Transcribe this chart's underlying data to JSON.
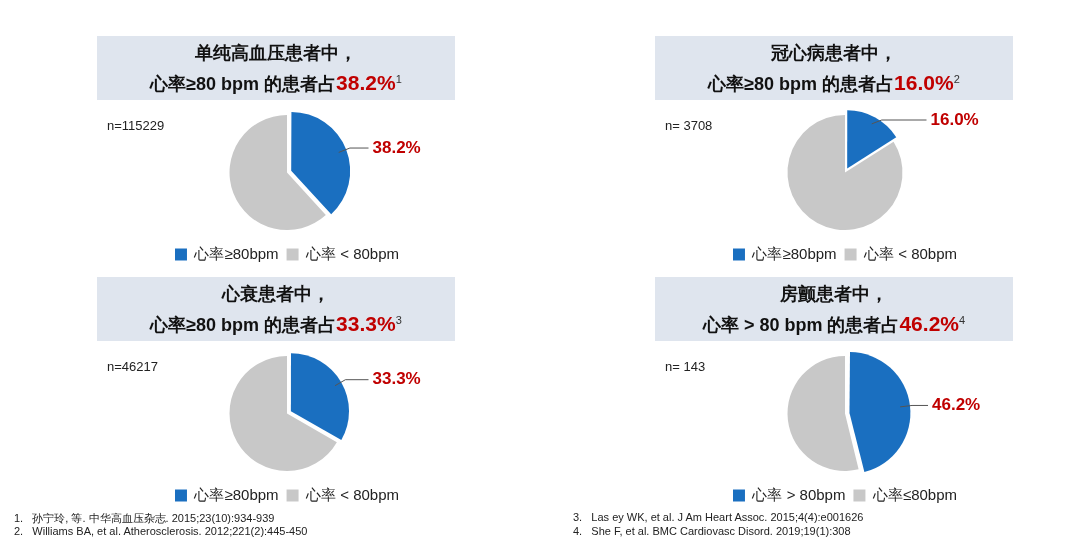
{
  "chart_data": [
    {
      "type": "pie",
      "title": "单纯高血压患者中，",
      "subtitle": "心率≥80 bpm 的患者占38.2%$^{1}$",
      "categories": [
        "心率≥80bpm",
        "心率 < 80bpm"
      ],
      "values": [
        38.2,
        61.8
      ],
      "colors": [
        "#1a6fc0",
        "#c8c8c8"
      ],
      "value_labels": [
        "38.2%",
        null
      ],
      "legend": "bottom",
      "annotations": [
        "n=115229",
        "1.   孙宁玲, 等. 中华高血压杂志. 2015;23(10):934-939"
      ]
    },
    {
      "type": "pie",
      "title": "冠心病患者中，",
      "subtitle": "心率≥80 bpm 的患者占16.0%$^{2}$",
      "categories": [
        "心率≥80bpm",
        "心率 < 80bpm"
      ],
      "values": [
        16.0,
        84.0
      ],
      "colors": [
        "#1a6fc0",
        "#c8c8c8"
      ],
      "value_labels": [
        "16.0%",
        null
      ],
      "legend": "bottom",
      "annotations": [
        "n= 3708",
        "2.   Williams BA, et al. Atherosclerosis. 2012;221(2):445-450"
      ]
    },
    {
      "type": "pie",
      "title": "心衰患者中，",
      "subtitle": "心率≥80 bpm 的患者占33.3%$^{3}$",
      "categories": [
        "心率≥80bpm",
        "心率 < 80bpm"
      ],
      "values": [
        33.3,
        66.7
      ],
      "colors": [
        "#1a6fc0",
        "#c8c8c8"
      ],
      "value_labels": [
        "33.3%",
        null
      ],
      "legend": "bottom",
      "annotations": [
        "n=46217",
        "3.   Las ey WK, et al. J Am Heart Assoc. 2015;4(4):e001626"
      ]
    },
    {
      "type": "pie",
      "title": "房颤患者中，",
      "subtitle": "心率 > 80 bpm 的患者占46.2%$^{4}$",
      "categories": [
        "心率 > 80bpm",
        "心率≤80bpm"
      ],
      "values": [
        46.2,
        53.8
      ],
      "colors": [
        "#1a6fc0",
        "#c8c8c8"
      ],
      "value_labels": [
        "46.2%",
        null
      ],
      "legend": "bottom",
      "annotations": [
        "n= 143",
        "4.   She F, et al. BMC Cardiovasc Disord. 2019;19(1):308"
      ]
    }
  ]
}
